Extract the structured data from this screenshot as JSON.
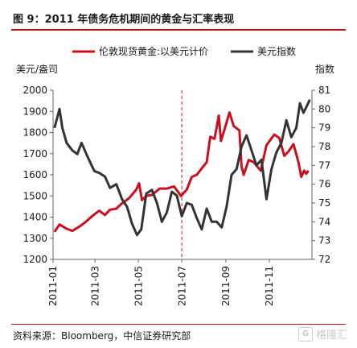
{
  "title": "图 9：2011 年债务危机期间的黄金与汇率表现",
  "source": "资料来源：Bloomberg，中信证券研究部",
  "watermark": "格隆汇",
  "colors": {
    "accent": "#b8121b",
    "gold_series": "#c8101e",
    "usd_series": "#333333"
  },
  "chart_data": {
    "type": "line",
    "legend_placement": "top",
    "grid": false,
    "x_ticks": [
      "2011-01",
      "2011-03",
      "2011-05",
      "2011-07",
      "2011-09",
      "2011-11"
    ],
    "x_range": [
      "2011-01-01",
      "2011-12-31"
    ],
    "left_axis": {
      "label": "美元/盎司",
      "ylim": [
        1200,
        2000
      ],
      "ticks": [
        1200,
        1300,
        1400,
        1500,
        1600,
        1700,
        1800,
        1900,
        2000
      ]
    },
    "right_axis": {
      "label": "指数",
      "ylim": [
        72,
        81
      ],
      "ticks": [
        72,
        73,
        74,
        75,
        76,
        77,
        78,
        79,
        80,
        81
      ]
    },
    "annotation": {
      "type": "vertical-dashed-line",
      "x": "2011-07-01"
    },
    "series": [
      {
        "name": "伦敦现货黄金:以美元计价",
        "axis": "left",
        "color": "#c8101e",
        "points": [
          [
            "2011-01-03",
            1330
          ],
          [
            "2011-01-10",
            1365
          ],
          [
            "2011-01-20",
            1345
          ],
          [
            "2011-01-28",
            1335
          ],
          [
            "2011-02-07",
            1355
          ],
          [
            "2011-02-15",
            1375
          ],
          [
            "2011-02-25",
            1405
          ],
          [
            "2011-03-07",
            1430
          ],
          [
            "2011-03-15",
            1410
          ],
          [
            "2011-03-22",
            1435
          ],
          [
            "2011-03-31",
            1440
          ],
          [
            "2011-04-08",
            1465
          ],
          [
            "2011-04-18",
            1490
          ],
          [
            "2011-04-28",
            1530
          ],
          [
            "2011-05-02",
            1560
          ],
          [
            "2011-05-06",
            1480
          ],
          [
            "2011-05-12",
            1500
          ],
          [
            "2011-05-20",
            1505
          ],
          [
            "2011-05-31",
            1535
          ],
          [
            "2011-06-10",
            1535
          ],
          [
            "2011-06-20",
            1545
          ],
          [
            "2011-06-30",
            1500
          ],
          [
            "2011-07-08",
            1530
          ],
          [
            "2011-07-15",
            1590
          ],
          [
            "2011-07-22",
            1600
          ],
          [
            "2011-07-29",
            1630
          ],
          [
            "2011-08-05",
            1660
          ],
          [
            "2011-08-10",
            1780
          ],
          [
            "2011-08-16",
            1770
          ],
          [
            "2011-08-22",
            1880
          ],
          [
            "2011-08-25",
            1760
          ],
          [
            "2011-08-31",
            1825
          ],
          [
            "2011-09-06",
            1895
          ],
          [
            "2011-09-12",
            1830
          ],
          [
            "2011-09-20",
            1810
          ],
          [
            "2011-09-23",
            1640
          ],
          [
            "2011-09-26",
            1600
          ],
          [
            "2011-10-03",
            1670
          ],
          [
            "2011-10-10",
            1660
          ],
          [
            "2011-10-20",
            1620
          ],
          [
            "2011-10-28",
            1740
          ],
          [
            "2011-11-08",
            1790
          ],
          [
            "2011-11-15",
            1775
          ],
          [
            "2011-11-22",
            1690
          ],
          [
            "2011-11-28",
            1710
          ],
          [
            "2011-12-05",
            1745
          ],
          [
            "2011-12-12",
            1660
          ],
          [
            "2011-12-16",
            1590
          ],
          [
            "2011-12-20",
            1620
          ],
          [
            "2011-12-23",
            1605
          ],
          [
            "2011-12-26",
            1620
          ]
        ]
      },
      {
        "name": "美元指数",
        "axis": "right",
        "color": "#333333",
        "points": [
          [
            "2011-01-03",
            79.0
          ],
          [
            "2011-01-10",
            80.0
          ],
          [
            "2011-01-14",
            79.0
          ],
          [
            "2011-01-20",
            78.2
          ],
          [
            "2011-01-28",
            77.8
          ],
          [
            "2011-02-04",
            77.6
          ],
          [
            "2011-02-10",
            78.2
          ],
          [
            "2011-02-18",
            77.5
          ],
          [
            "2011-02-28",
            76.7
          ],
          [
            "2011-03-07",
            76.6
          ],
          [
            "2011-03-15",
            76.4
          ],
          [
            "2011-03-22",
            75.8
          ],
          [
            "2011-03-31",
            76.0
          ],
          [
            "2011-04-08",
            75.2
          ],
          [
            "2011-04-15",
            74.8
          ],
          [
            "2011-04-22",
            73.9
          ],
          [
            "2011-04-29",
            73.3
          ],
          [
            "2011-05-05",
            73.6
          ],
          [
            "2011-05-12",
            75.5
          ],
          [
            "2011-05-20",
            75.7
          ],
          [
            "2011-05-27",
            75.0
          ],
          [
            "2011-06-03",
            74.0
          ],
          [
            "2011-06-10",
            74.5
          ],
          [
            "2011-06-17",
            75.6
          ],
          [
            "2011-06-24",
            75.4
          ],
          [
            "2011-07-01",
            74.3
          ],
          [
            "2011-07-08",
            75.0
          ],
          [
            "2011-07-15",
            74.9
          ],
          [
            "2011-07-22",
            74.2
          ],
          [
            "2011-07-29",
            73.6
          ],
          [
            "2011-08-05",
            74.7
          ],
          [
            "2011-08-12",
            74.0
          ],
          [
            "2011-08-19",
            74.0
          ],
          [
            "2011-08-26",
            73.7
          ],
          [
            "2011-09-02",
            74.8
          ],
          [
            "2011-09-09",
            76.5
          ],
          [
            "2011-09-16",
            76.8
          ],
          [
            "2011-09-23",
            78.0
          ],
          [
            "2011-09-30",
            78.6
          ],
          [
            "2011-10-07",
            77.8
          ],
          [
            "2011-10-14",
            77.0
          ],
          [
            "2011-10-21",
            77.3
          ],
          [
            "2011-10-28",
            75.2
          ],
          [
            "2011-11-04",
            76.8
          ],
          [
            "2011-11-11",
            77.7
          ],
          [
            "2011-11-18",
            78.2
          ],
          [
            "2011-11-25",
            79.4
          ],
          [
            "2011-12-02",
            78.5
          ],
          [
            "2011-12-09",
            79.0
          ],
          [
            "2011-12-14",
            80.3
          ],
          [
            "2011-12-19",
            79.8
          ],
          [
            "2011-12-23",
            80.1
          ],
          [
            "2011-12-28",
            80.5
          ]
        ]
      }
    ]
  }
}
